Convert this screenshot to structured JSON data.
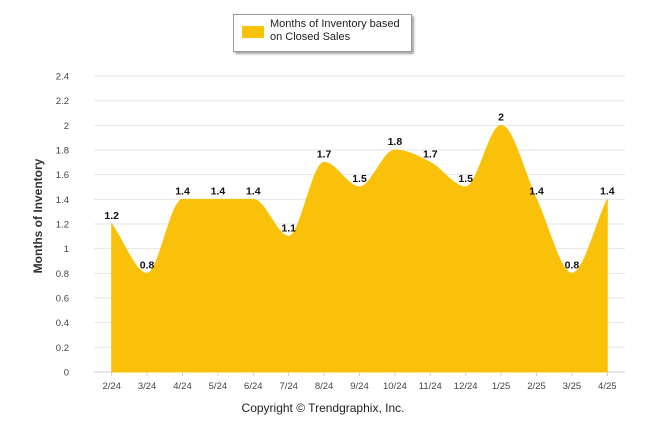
{
  "chart_data": {
    "type": "area",
    "categories": [
      "2/24",
      "3/24",
      "4/24",
      "5/24",
      "6/24",
      "7/24",
      "8/24",
      "9/24",
      "10/24",
      "11/24",
      "12/24",
      "1/25",
      "2/25",
      "3/25",
      "4/25"
    ],
    "series": [
      {
        "name": "Months of Inventory based on Closed Sales",
        "values": [
          1.2,
          0.8,
          1.4,
          1.4,
          1.4,
          1.1,
          1.7,
          1.5,
          1.8,
          1.7,
          1.5,
          2,
          1.4,
          0.8,
          1.4
        ]
      }
    ],
    "data_labels": [
      "1.2",
      "0.8",
      "1.4",
      "1.4",
      "1.4",
      "1.1",
      "1.7",
      "1.5",
      "1.8",
      "1.7",
      "1.5",
      "2",
      "1.4",
      "0.8",
      "1.4"
    ],
    "ylabel": "Months of Inventory",
    "xlabel": "",
    "ylim": [
      0,
      2.4
    ],
    "yticks": [
      "0",
      "0.2",
      "0.4",
      "0.6",
      "0.8",
      "1",
      "1.2",
      "1.4",
      "1.6",
      "1.8",
      "2",
      "2.2",
      "2.4"
    ],
    "grid": true,
    "legend_position": "top-center",
    "series_color": "#F9C10A",
    "gridline_color": "#e6e6e6"
  },
  "legend": {
    "label": "Months of Inventory based on Closed Sales"
  },
  "footer": {
    "copyright": "Copyright © Trendgraphix, Inc."
  }
}
